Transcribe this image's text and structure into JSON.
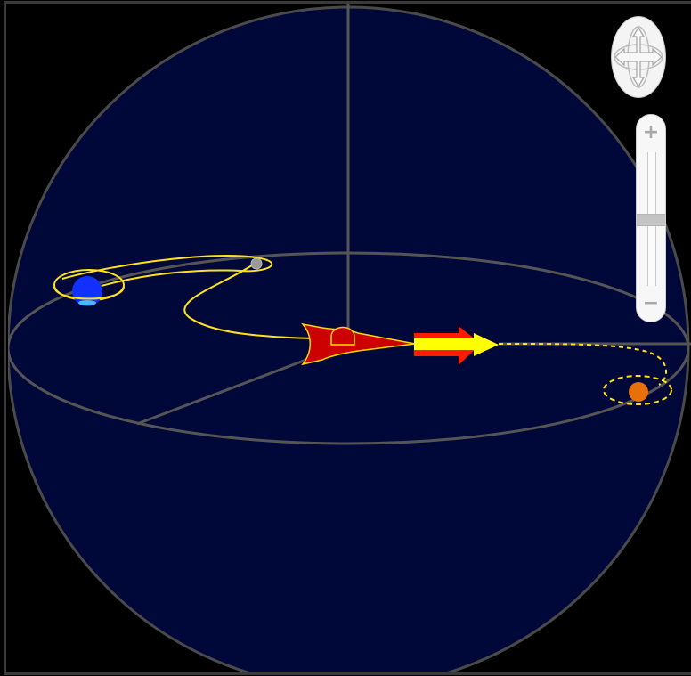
{
  "scene": {
    "background": "#000000",
    "sphere_fill": "#00083a",
    "grid_color": "#444444",
    "orbit_color": "#ffe21a",
    "planet_blue": "#1230ff",
    "planet_orange": "#e8700a",
    "moon_color": "#999999",
    "ship_red": "#cc0000",
    "ship_outline": "#ffd700",
    "arrow_red": "#ff1a00",
    "arrow_yellow": "#ffff00"
  },
  "controls": {
    "rotate_icon": "four-way-arrows-icon",
    "zoom_in_label": "+",
    "zoom_out_label": "−",
    "zoom_level": 0.5
  }
}
